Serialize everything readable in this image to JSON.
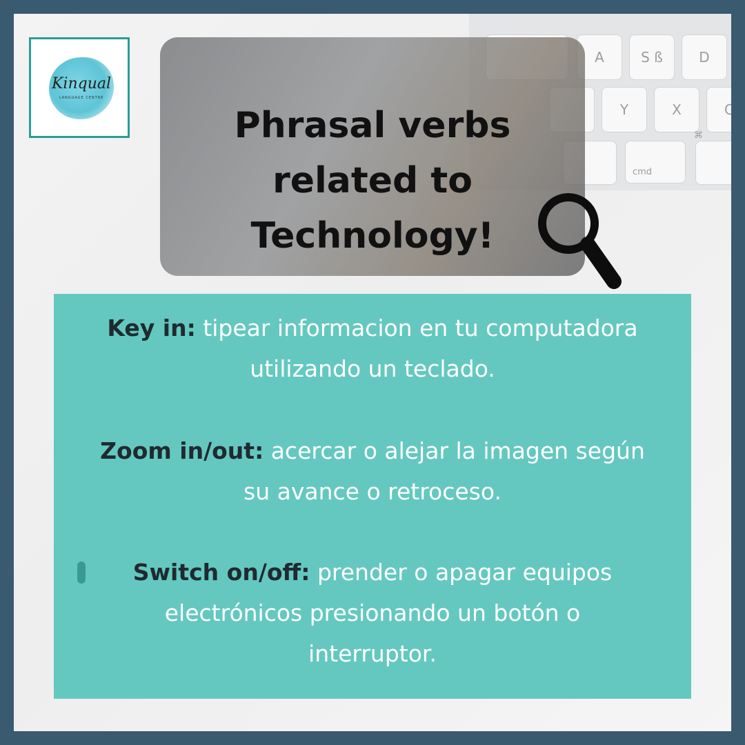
{
  "logo": {
    "script": "Kinqual",
    "subtitle": "LANGUAGE CENTRE"
  },
  "keyboard": {
    "keys": [
      "A",
      "S ß",
      "D",
      "Y",
      "X",
      "C",
      "cmd",
      "⌘"
    ]
  },
  "title": {
    "line1": "Phrasal verbs",
    "line2": "related to",
    "line3": "Technology!"
  },
  "entries": [
    {
      "term": "Key in:",
      "line1": " tipear informacion en tu computadora",
      "line2": "utilizando un teclado."
    },
    {
      "term": "Zoom in/out:",
      "line1": " acercar o alejar la imagen según",
      "line2": "su avance o retroceso."
    },
    {
      "term": "Switch on/off:",
      "line1": " prender o apagar equipos",
      "line2": "electrónicos presionando un botón o",
      "line3": "interruptor."
    }
  ],
  "colors": {
    "border": "#3a5a70",
    "accent_teal": "#64c8c0",
    "logo_border": "#2a9c97",
    "term_text": "#1f2a30",
    "body_text": "#ffffff"
  },
  "icons": [
    "magnifying-glass-icon"
  ]
}
